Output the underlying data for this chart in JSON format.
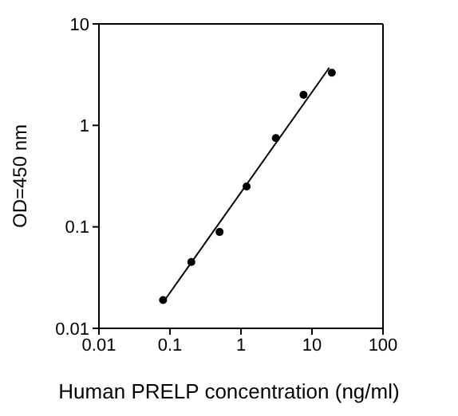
{
  "chart_data": {
    "type": "scatter",
    "xlabel": "Human PRELP concentration (ng/ml)",
    "ylabel": "OD=450 nm",
    "log": "xy",
    "marker": "circle",
    "xlim": [
      0.01,
      100
    ],
    "ylim": [
      0.01,
      10
    ],
    "xticks": [
      0.01,
      0.1,
      1,
      10,
      100
    ],
    "yticks": [
      0.01,
      0.1,
      1,
      10
    ],
    "series": [
      {
        "color": "#000000",
        "x": [
          0.08,
          0.2,
          0.5,
          1.2,
          3.1,
          7.6,
          19
        ],
        "values": [
          0.019,
          0.045,
          0.089,
          0.25,
          0.75,
          2.0,
          3.3
        ]
      },
      {
        "type": "line",
        "marker": "none",
        "color": "#000000",
        "x": [
          0.08,
          17.5
        ],
        "values": [
          0.018,
          3.7
        ]
      }
    ]
  }
}
